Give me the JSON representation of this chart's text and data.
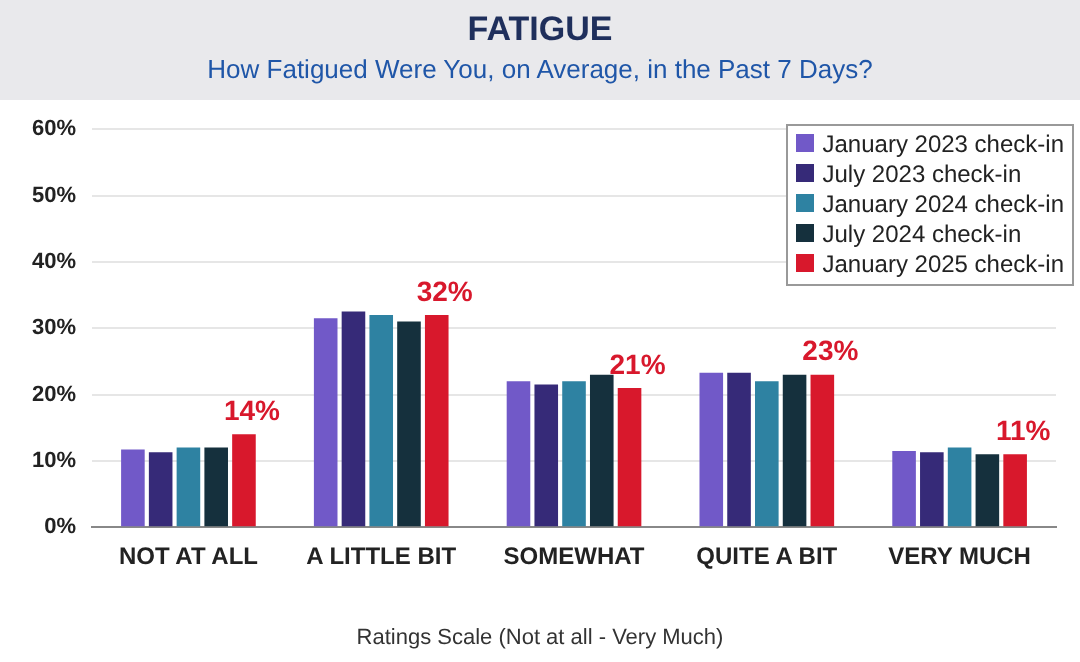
{
  "chart_data": {
    "type": "bar",
    "title": "FATIGUE",
    "subtitle": "How Fatigued Were You, on Average, in the Past 7 Days?",
    "xlabel": "Ratings Scale (Not at all - Very Much)",
    "categories": [
      "NOT AT ALL",
      "A LITTLE BIT",
      "SOMEWHAT",
      "QUITE A BIT",
      "VERY MUCH"
    ],
    "series": [
      {
        "name": "January 2023 check-in",
        "color": "#7159c8",
        "values": [
          11.7,
          31.5,
          22,
          23.3,
          11.5
        ]
      },
      {
        "name": "July 2023 check-in",
        "color": "#362a78",
        "values": [
          11.3,
          32.5,
          21.5,
          23.3,
          11.3
        ]
      },
      {
        "name": "January 2024 check-in",
        "color": "#2e82a2",
        "values": [
          12,
          32,
          22,
          22,
          12
        ]
      },
      {
        "name": "July 2024 check-in",
        "color": "#15303d",
        "values": [
          12,
          31,
          23,
          23,
          11
        ]
      },
      {
        "name": "January 2025 check-in",
        "color": "#d8182c",
        "values": [
          14,
          32,
          21,
          23,
          11
        ],
        "value_labels": [
          "14%",
          "32%",
          "21%",
          "23%",
          "11%"
        ]
      }
    ],
    "ylim": [
      0,
      60
    ],
    "yticks": [
      {
        "value": 0,
        "label": "0%"
      },
      {
        "value": 10,
        "label": "10%"
      },
      {
        "value": 20,
        "label": "20%"
      },
      {
        "value": 30,
        "label": "30%"
      },
      {
        "value": 40,
        "label": "40%"
      },
      {
        "value": 50,
        "label": "50%"
      },
      {
        "value": 60,
        "label": "60%"
      }
    ],
    "grid": "y",
    "legend": "top right"
  }
}
